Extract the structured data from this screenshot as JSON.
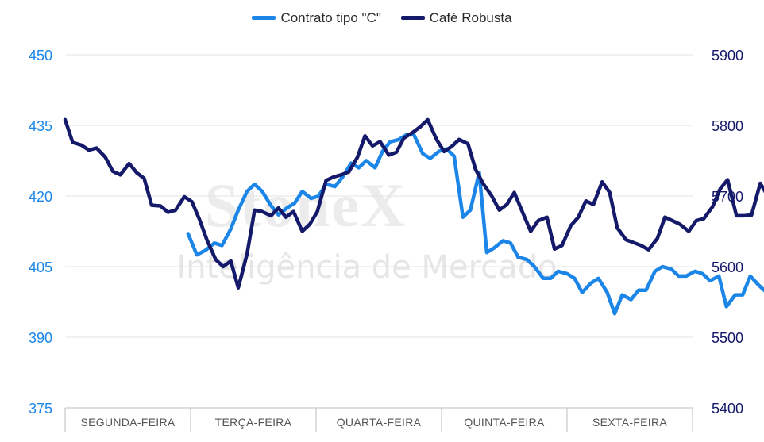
{
  "chart_data": {
    "type": "line",
    "x_categories": [
      "SEGUNDA-FEIRA",
      "TERÇA-FEIRA",
      "QUARTA-FEIRA",
      "QUINTA-FEIRA",
      "SEXTA-FEIRA"
    ],
    "left_axis": {
      "ylim": [
        375,
        450
      ],
      "ticks": [
        375,
        390,
        405,
        420,
        435,
        450
      ]
    },
    "right_axis": {
      "ylim": [
        5400,
        5900
      ],
      "ticks": [
        5400,
        5500,
        5600,
        5700,
        5800,
        5900
      ]
    },
    "grid": true,
    "legend_position": "top-center",
    "series": [
      {
        "name": "Contrato tipo \"C\"",
        "axis": "left",
        "color": "#1b86e8",
        "points": [
          [
            1.98,
            412.0
          ],
          [
            2.05,
            407.5
          ],
          [
            2.12,
            408.5
          ],
          [
            2.19,
            410.0
          ],
          [
            2.25,
            409.5
          ],
          [
            2.32,
            413.0
          ],
          [
            2.38,
            417.0
          ],
          [
            2.45,
            421.0
          ],
          [
            2.51,
            422.5
          ],
          [
            2.57,
            421.0
          ],
          [
            2.64,
            418.0
          ],
          [
            2.7,
            416.0
          ],
          [
            2.77,
            417.5
          ],
          [
            2.83,
            418.5
          ],
          [
            2.89,
            421.0
          ],
          [
            2.96,
            419.5
          ],
          [
            3.02,
            420.0
          ],
          [
            3.08,
            422.5
          ],
          [
            3.15,
            422.0
          ],
          [
            3.21,
            424.0
          ],
          [
            3.28,
            427.0
          ],
          [
            3.34,
            426.0
          ],
          [
            3.4,
            427.5
          ],
          [
            3.47,
            426.0
          ],
          [
            3.53,
            429.5
          ],
          [
            3.59,
            431.5
          ],
          [
            3.66,
            432.0
          ],
          [
            3.72,
            433.0
          ],
          [
            3.78,
            433.0
          ],
          [
            3.85,
            429.0
          ],
          [
            3.91,
            428.0
          ],
          [
            3.98,
            429.5
          ],
          [
            4.04,
            430.0
          ],
          [
            4.1,
            428.5
          ],
          [
            4.17,
            415.5
          ],
          [
            4.23,
            417.0
          ],
          [
            4.3,
            425.0
          ],
          [
            4.36,
            408.0
          ],
          [
            4.42,
            409.0
          ],
          [
            4.49,
            410.5
          ],
          [
            4.55,
            410.0
          ],
          [
            4.61,
            407.0
          ],
          [
            4.68,
            406.5
          ],
          [
            4.74,
            405.0
          ],
          [
            4.81,
            402.5
          ],
          [
            4.87,
            402.5
          ],
          [
            4.93,
            404.0
          ],
          [
            5.0,
            403.5
          ],
          [
            5.06,
            402.5
          ],
          [
            5.12,
            399.5
          ],
          [
            5.19,
            401.5
          ],
          [
            5.25,
            402.5
          ],
          [
            5.32,
            399.5
          ],
          [
            5.38,
            395.0
          ],
          [
            5.44,
            399.0
          ],
          [
            5.51,
            398.0
          ],
          [
            5.57,
            400.0
          ],
          [
            5.63,
            400.0
          ],
          [
            5.7,
            404.0
          ],
          [
            5.76,
            405.0
          ],
          [
            5.83,
            404.5
          ],
          [
            5.89,
            403.0
          ],
          [
            5.95,
            403.0
          ],
          [
            6.02,
            404.0
          ],
          [
            6.08,
            403.5
          ],
          [
            6.14,
            402.0
          ],
          [
            6.21,
            403.0
          ],
          [
            6.27,
            396.5
          ],
          [
            6.34,
            399.0
          ],
          [
            6.4,
            399.0
          ],
          [
            6.46,
            403.0
          ],
          [
            6.53,
            401.0
          ],
          [
            6.59,
            399.5
          ],
          [
            6.66,
            400.5
          ],
          [
            6.72,
            398.5
          ]
        ]
      },
      {
        "name": "Café Robusta",
        "axis": "right",
        "color": "#14196a",
        "points": [
          [
            1.0,
            5808
          ],
          [
            1.06,
            5776
          ],
          [
            1.13,
            5772
          ],
          [
            1.19,
            5765
          ],
          [
            1.25,
            5768
          ],
          [
            1.32,
            5755
          ],
          [
            1.38,
            5735
          ],
          [
            1.44,
            5730
          ],
          [
            1.51,
            5746
          ],
          [
            1.57,
            5733
          ],
          [
            1.63,
            5725
          ],
          [
            1.69,
            5687
          ],
          [
            1.76,
            5686
          ],
          [
            1.82,
            5677
          ],
          [
            1.88,
            5680
          ],
          [
            1.95,
            5699
          ],
          [
            2.01,
            5692
          ],
          [
            2.07,
            5667
          ],
          [
            2.13,
            5638
          ],
          [
            2.2,
            5610
          ],
          [
            2.26,
            5600
          ],
          [
            2.32,
            5608
          ],
          [
            2.38,
            5570
          ],
          [
            2.45,
            5618
          ],
          [
            2.51,
            5680
          ],
          [
            2.57,
            5678
          ],
          [
            2.64,
            5672
          ],
          [
            2.7,
            5683
          ],
          [
            2.76,
            5670
          ],
          [
            2.82,
            5678
          ],
          [
            2.89,
            5650
          ],
          [
            2.95,
            5660
          ],
          [
            3.01,
            5678
          ],
          [
            3.08,
            5722
          ],
          [
            3.14,
            5727
          ],
          [
            3.2,
            5730
          ],
          [
            3.26,
            5734
          ],
          [
            3.33,
            5755
          ],
          [
            3.39,
            5785
          ],
          [
            3.45,
            5771
          ],
          [
            3.51,
            5777
          ],
          [
            3.58,
            5758
          ],
          [
            3.64,
            5762
          ],
          [
            3.7,
            5782
          ],
          [
            3.77,
            5790
          ],
          [
            3.83,
            5798
          ],
          [
            3.89,
            5808
          ],
          [
            3.96,
            5780
          ],
          [
            4.02,
            5763
          ],
          [
            4.08,
            5770
          ],
          [
            4.14,
            5780
          ],
          [
            4.21,
            5774
          ],
          [
            4.27,
            5738
          ],
          [
            4.33,
            5718
          ],
          [
            4.4,
            5700
          ],
          [
            4.46,
            5680
          ],
          [
            4.52,
            5688
          ],
          [
            4.58,
            5705
          ],
          [
            4.65,
            5675
          ],
          [
            4.71,
            5650
          ],
          [
            4.77,
            5665
          ],
          [
            4.84,
            5670
          ],
          [
            4.9,
            5625
          ],
          [
            4.96,
            5630
          ],
          [
            5.03,
            5658
          ],
          [
            5.09,
            5670
          ],
          [
            5.15,
            5693
          ],
          [
            5.21,
            5688
          ],
          [
            5.28,
            5720
          ],
          [
            5.34,
            5705
          ],
          [
            5.4,
            5655
          ],
          [
            5.47,
            5638
          ],
          [
            5.53,
            5634
          ],
          [
            5.59,
            5630
          ],
          [
            5.65,
            5624
          ],
          [
            5.72,
            5640
          ],
          [
            5.78,
            5670
          ],
          [
            5.84,
            5665
          ],
          [
            5.9,
            5660
          ],
          [
            5.97,
            5650
          ],
          [
            6.03,
            5665
          ],
          [
            6.09,
            5668
          ],
          [
            6.16,
            5685
          ],
          [
            6.22,
            5710
          ],
          [
            6.28,
            5723
          ],
          [
            6.35,
            5672
          ],
          [
            6.41,
            5672
          ],
          [
            6.47,
            5673
          ],
          [
            6.54,
            5718
          ],
          [
            6.6,
            5700
          ],
          [
            6.66,
            5720
          ]
        ]
      }
    ]
  },
  "watermark": {
    "brand": "StoneX",
    "subtitle": "Inteligência de Mercado"
  },
  "colors": {
    "series_c": "#1b86e8",
    "series_robusta": "#14196a",
    "grid": "#e3e3e3",
    "axis": "#bdbdbd"
  }
}
